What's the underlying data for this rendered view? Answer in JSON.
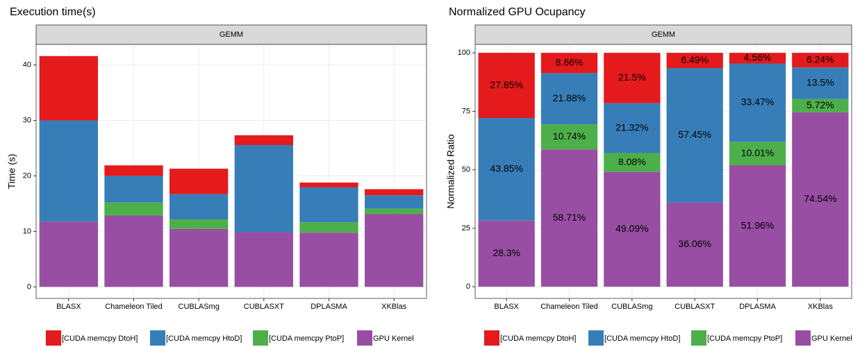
{
  "chart_data": [
    {
      "type": "bar",
      "stacked": true,
      "title": "Execution time(s)",
      "facet": "GEMM",
      "ylabel": "Time (s)",
      "categories": [
        "BLASX",
        "Chameleon Tiled",
        "CUBLASmg",
        "CUBLASXT",
        "DPLASMA",
        "XKBlas"
      ],
      "series": [
        {
          "name": "[CUDA memcpy DtoH]",
          "color": "#e41a1c",
          "values": [
            11.59,
            1.9,
            4.58,
            1.77,
            0.86,
            1.1
          ]
        },
        {
          "name": "[CUDA memcpy HtoD]",
          "color": "#377eb8",
          "values": [
            18.24,
            4.79,
            4.54,
            15.7,
            6.29,
            2.38
          ]
        },
        {
          "name": "[CUDA memcpy PtoP]",
          "color": "#4daf4a",
          "values": [
            0,
            2.35,
            1.72,
            0,
            1.88,
            1.01
          ]
        },
        {
          "name": "GPU Kernel",
          "color": "#984ea3",
          "values": [
            11.77,
            12.86,
            10.46,
            9.86,
            9.77,
            13.12
          ]
        }
      ],
      "ylim": [
        -2.08,
        43.7
      ],
      "yticks": [
        0,
        10,
        20,
        30,
        40
      ],
      "grid": true,
      "legend": "bottom"
    },
    {
      "type": "bar",
      "stacked": true,
      "title": "Normalized GPU Ocupancy",
      "facet": "GEMM",
      "ylabel": "Normalized Ratio",
      "categories": [
        "BLASX",
        "Chameleon Tiled",
        "CUBLASmg",
        "CUBLASXT",
        "DPLASMA",
        "XKBlas"
      ],
      "series": [
        {
          "name": "[CUDA memcpy DtoH]",
          "color": "#e41a1c",
          "values": [
            27.85,
            8.66,
            21.5,
            6.49,
            4.56,
            6.24
          ],
          "value_labels": [
            "27.85%",
            "8.66%",
            "21.5%",
            "6.49%",
            "4.56%",
            "6.24%"
          ]
        },
        {
          "name": "[CUDA memcpy HtoD]",
          "color": "#377eb8",
          "values": [
            43.85,
            21.88,
            21.32,
            57.45,
            33.47,
            13.5
          ],
          "value_labels": [
            "43.85%",
            "21.88%",
            "21.32%",
            "57.45%",
            "33.47%",
            "13.5%"
          ]
        },
        {
          "name": "[CUDA memcpy PtoP]",
          "color": "#4daf4a",
          "values": [
            0,
            10.74,
            8.08,
            0,
            10.01,
            5.72
          ],
          "value_labels": [
            null,
            "10.74%",
            "8.08%",
            null,
            "10.01%",
            "5.72%"
          ]
        },
        {
          "name": "GPU Kernel",
          "color": "#984ea3",
          "values": [
            28.3,
            58.71,
            49.09,
            36.06,
            51.96,
            74.54
          ],
          "value_labels": [
            "28.3%",
            "58.71%",
            "49.09%",
            "36.06%",
            "51.96%",
            "74.54%"
          ]
        }
      ],
      "ylim": [
        -5,
        103.6
      ],
      "yticks": [
        0,
        25,
        50,
        75,
        100
      ],
      "grid": true,
      "legend": "bottom"
    }
  ]
}
